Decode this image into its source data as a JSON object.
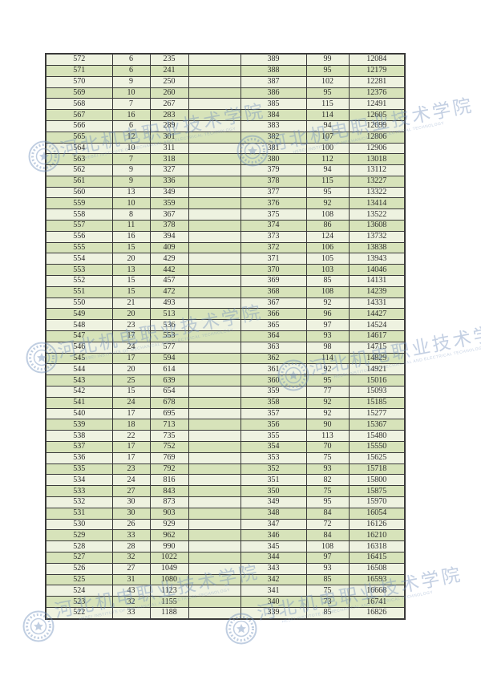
{
  "watermark": {
    "text": "河北机电职业技术学院",
    "subtext": "HEBEI INSTITUTE OF MECHANICAL AND ELECTRICAL TECHNOLOGY",
    "color": "#7491bd"
  },
  "colors": {
    "page_bg": "#ffffff",
    "row_light": "#eef2e0",
    "row_green": "#d7e3ba",
    "border": "#3a3a3a",
    "text": "#2b2b2b"
  },
  "table": {
    "rows": [
      [
        572,
        6,
        235,
        389,
        99,
        12084
      ],
      [
        571,
        6,
        241,
        388,
        95,
        12179
      ],
      [
        570,
        9,
        250,
        387,
        102,
        12281
      ],
      [
        569,
        10,
        260,
        386,
        95,
        12376
      ],
      [
        568,
        7,
        267,
        385,
        115,
        12491
      ],
      [
        567,
        16,
        283,
        384,
        114,
        12605
      ],
      [
        566,
        6,
        289,
        383,
        94,
        12699
      ],
      [
        565,
        12,
        301,
        382,
        107,
        12806
      ],
      [
        564,
        10,
        311,
        381,
        100,
        12906
      ],
      [
        563,
        7,
        318,
        380,
        112,
        13018
      ],
      [
        562,
        9,
        327,
        379,
        94,
        13112
      ],
      [
        561,
        9,
        336,
        378,
        115,
        13227
      ],
      [
        560,
        13,
        349,
        377,
        95,
        13322
      ],
      [
        559,
        10,
        359,
        376,
        92,
        13414
      ],
      [
        558,
        8,
        367,
        375,
        108,
        13522
      ],
      [
        557,
        11,
        378,
        374,
        86,
        13608
      ],
      [
        556,
        16,
        394,
        373,
        124,
        13732
      ],
      [
        555,
        15,
        409,
        372,
        106,
        13838
      ],
      [
        554,
        20,
        429,
        371,
        105,
        13943
      ],
      [
        553,
        13,
        442,
        370,
        103,
        14046
      ],
      [
        552,
        15,
        457,
        369,
        85,
        14131
      ],
      [
        551,
        15,
        472,
        368,
        108,
        14239
      ],
      [
        550,
        21,
        493,
        367,
        92,
        14331
      ],
      [
        549,
        20,
        513,
        366,
        96,
        14427
      ],
      [
        548,
        23,
        536,
        365,
        97,
        14524
      ],
      [
        547,
        17,
        553,
        364,
        93,
        14617
      ],
      [
        546,
        24,
        577,
        363,
        98,
        14715
      ],
      [
        545,
        17,
        594,
        362,
        114,
        14829
      ],
      [
        544,
        20,
        614,
        361,
        92,
        14921
      ],
      [
        543,
        25,
        639,
        360,
        95,
        15016
      ],
      [
        542,
        15,
        654,
        359,
        77,
        15093
      ],
      [
        541,
        24,
        678,
        358,
        92,
        15185
      ],
      [
        540,
        17,
        695,
        357,
        92,
        15277
      ],
      [
        539,
        18,
        713,
        356,
        90,
        15367
      ],
      [
        538,
        22,
        735,
        355,
        113,
        15480
      ],
      [
        537,
        17,
        752,
        354,
        70,
        15550
      ],
      [
        536,
        17,
        769,
        353,
        75,
        15625
      ],
      [
        535,
        23,
        792,
        352,
        93,
        15718
      ],
      [
        534,
        24,
        816,
        351,
        82,
        15800
      ],
      [
        533,
        27,
        843,
        350,
        75,
        15875
      ],
      [
        532,
        30,
        873,
        349,
        95,
        15970
      ],
      [
        531,
        30,
        903,
        348,
        84,
        16054
      ],
      [
        530,
        26,
        929,
        347,
        72,
        16126
      ],
      [
        529,
        33,
        962,
        346,
        84,
        16210
      ],
      [
        528,
        28,
        990,
        345,
        108,
        16318
      ],
      [
        527,
        32,
        1022,
        344,
        97,
        16415
      ],
      [
        526,
        27,
        1049,
        343,
        93,
        16508
      ],
      [
        525,
        31,
        1080,
        342,
        85,
        16593
      ],
      [
        524,
        43,
        1123,
        341,
        75,
        16668
      ],
      [
        523,
        32,
        1155,
        340,
        73,
        16741
      ],
      [
        522,
        33,
        1188,
        339,
        85,
        16826
      ]
    ]
  }
}
